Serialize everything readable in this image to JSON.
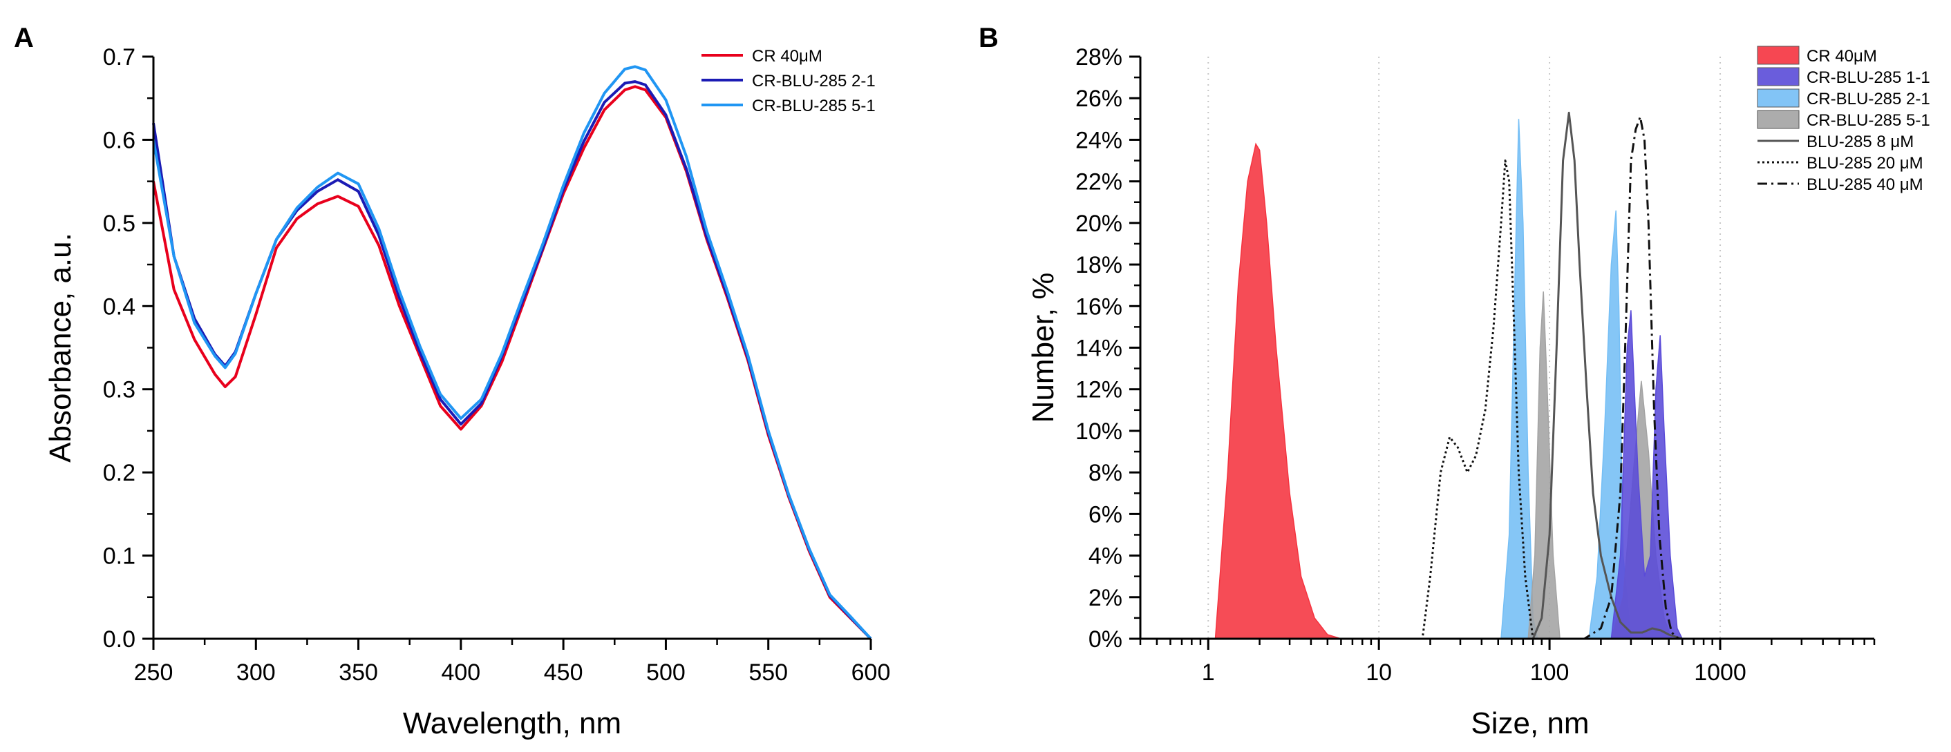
{
  "chart_data": [
    {
      "panel": "A",
      "type": "line",
      "title": "",
      "xlabel": "Wavelength, nm",
      "ylabel": "Absorbance, a.u.",
      "xlim": [
        250,
        600
      ],
      "ylim": [
        0.0,
        0.7
      ],
      "xticks": [
        250,
        300,
        350,
        400,
        450,
        500,
        550,
        600
      ],
      "yticks": [
        0.0,
        0.1,
        0.2,
        0.3,
        0.4,
        0.5,
        0.6,
        0.7
      ],
      "xtick_labels": [
        "250",
        "300",
        "350",
        "400",
        "450",
        "500",
        "550",
        "600"
      ],
      "ytick_labels": [
        "0.0",
        "0.1",
        "0.2",
        "0.3",
        "0.4",
        "0.5",
        "0.6",
        "0.7"
      ],
      "grid": false,
      "legend_position": "top-right",
      "x": [
        250,
        260,
        270,
        280,
        285,
        290,
        300,
        310,
        320,
        330,
        340,
        350,
        360,
        370,
        380,
        390,
        400,
        410,
        420,
        430,
        440,
        450,
        460,
        470,
        480,
        485,
        490,
        500,
        510,
        520,
        530,
        540,
        550,
        560,
        570,
        580,
        590,
        600
      ],
      "series": [
        {
          "name": "CR 40μM",
          "color": "#e8001c",
          "values": [
            0.55,
            0.42,
            0.36,
            0.318,
            0.303,
            0.315,
            0.39,
            0.47,
            0.505,
            0.523,
            0.532,
            0.52,
            0.473,
            0.4,
            0.34,
            0.28,
            0.252,
            0.28,
            0.333,
            0.4,
            0.468,
            0.535,
            0.59,
            0.636,
            0.66,
            0.664,
            0.66,
            0.627,
            0.562,
            0.48,
            0.41,
            0.335,
            0.245,
            0.17,
            0.105,
            0.05,
            0.025,
            0.0
          ]
        },
        {
          "name": "CR-BLU-285 2-1",
          "color": "#1b1bb4",
          "values": [
            0.62,
            0.46,
            0.385,
            0.342,
            0.328,
            0.345,
            0.415,
            0.48,
            0.515,
            0.538,
            0.552,
            0.538,
            0.485,
            0.41,
            0.345,
            0.288,
            0.258,
            0.283,
            0.34,
            0.405,
            0.47,
            0.54,
            0.598,
            0.645,
            0.668,
            0.67,
            0.666,
            0.63,
            0.565,
            0.483,
            0.413,
            0.338,
            0.248,
            0.172,
            0.107,
            0.052,
            0.026,
            0.0
          ]
        },
        {
          "name": "CR-BLU-285 5-1",
          "color": "#2096f3",
          "values": [
            0.6,
            0.46,
            0.38,
            0.34,
            0.326,
            0.343,
            0.415,
            0.48,
            0.518,
            0.543,
            0.56,
            0.547,
            0.493,
            0.418,
            0.352,
            0.294,
            0.265,
            0.288,
            0.343,
            0.41,
            0.475,
            0.545,
            0.608,
            0.656,
            0.685,
            0.688,
            0.684,
            0.648,
            0.58,
            0.49,
            0.418,
            0.341,
            0.25,
            0.173,
            0.108,
            0.053,
            0.027,
            0.0
          ]
        }
      ]
    },
    {
      "panel": "B",
      "type": "area",
      "title": "",
      "xlabel": "Size, nm",
      "ylabel": "Number, %",
      "xscale": "log",
      "xlim": [
        0.4,
        8000
      ],
      "ylim": [
        0,
        28
      ],
      "xticks": [
        1,
        10,
        100,
        1000
      ],
      "xtick_labels": [
        "1",
        "10",
        "100",
        "1000"
      ],
      "yticks": [
        0,
        2,
        4,
        6,
        8,
        10,
        12,
        14,
        16,
        18,
        20,
        22,
        24,
        26,
        28
      ],
      "ytick_labels": [
        "0%",
        "2%",
        "4%",
        "6%",
        "8%",
        "10%",
        "12%",
        "14%",
        "16%",
        "18%",
        "20%",
        "22%",
        "24%",
        "26%",
        "28%"
      ],
      "grid": "vertical dotted at decades",
      "legend_position": "top-right",
      "series": [
        {
          "name": "CR 40μM",
          "style": "filled",
          "color": "#f5333f",
          "x": [
            1.1,
            1.3,
            1.5,
            1.7,
            1.9,
            2.0,
            2.2,
            2.5,
            3.0,
            3.5,
            4.2,
            5.0,
            6.0
          ],
          "y": [
            0,
            8,
            17,
            22,
            23.8,
            23.5,
            20,
            14,
            7,
            3,
            1,
            0.2,
            0
          ]
        },
        {
          "name": "CR-BLU-285 2-1",
          "style": "filled",
          "color": "#74bef5",
          "x": [
            52,
            58,
            63,
            66,
            70,
            75,
            80,
            85,
            170,
            190,
            210,
            230,
            245,
            255,
            270,
            300
          ],
          "y": [
            0,
            5,
            18,
            25,
            20,
            8,
            1,
            0,
            0,
            3,
            10,
            18,
            20.6,
            16,
            4,
            0
          ]
        },
        {
          "name": "CR-BLU-285 5-1",
          "style": "filled",
          "color": "#a3a3a3",
          "x": [
            75,
            82,
            88,
            92,
            97,
            105,
            115,
            230,
            270,
            310,
            345,
            380,
            420,
            470,
            520
          ],
          "y": [
            0,
            4,
            14,
            16.7,
            12,
            4,
            0,
            0,
            2,
            8,
            12.4,
            9,
            4,
            1,
            0
          ]
        },
        {
          "name": "CR-BLU-285 1-1",
          "style": "filled",
          "color": "#5a4bd8",
          "x": [
            230,
            260,
            285,
            300,
            330,
            360,
            390,
            420,
            445,
            470,
            510,
            560,
            600
          ],
          "y": [
            0,
            4,
            14,
            15.8,
            8,
            3,
            4,
            12,
            14.6,
            10,
            4,
            0.5,
            0
          ]
        },
        {
          "name": "BLU-285 8 μM",
          "style": "solid",
          "color": "#555555",
          "x": [
            0.4,
            80,
            90,
            100,
            110,
            120,
            130,
            140,
            150,
            165,
            180,
            200,
            230,
            260,
            300,
            350,
            400,
            450,
            500,
            600,
            8000
          ],
          "y": [
            0,
            0,
            1,
            5,
            14,
            23,
            25.3,
            23,
            18,
            12,
            7,
            4,
            2,
            0.8,
            0.3,
            0.3,
            0.5,
            0.4,
            0.2,
            0,
            0
          ]
        },
        {
          "name": "BLU-285 20 μM",
          "style": "dotted",
          "color": "#111111",
          "x": [
            0.4,
            18,
            20,
            23,
            26,
            29,
            33,
            37,
            42,
            47,
            52,
            55,
            58,
            62,
            66,
            72,
            80,
            8000
          ],
          "y": [
            0,
            0,
            3,
            8,
            9.7,
            9.2,
            8.0,
            8.8,
            11,
            15,
            20,
            23,
            22,
            15,
            8,
            3,
            0,
            0
          ]
        },
        {
          "name": "BLU-285 40 μM",
          "style": "dashdot",
          "color": "#111111",
          "x": [
            0.4,
            160,
            200,
            230,
            260,
            280,
            300,
            320,
            340,
            360,
            380,
            410,
            440,
            480,
            520,
            570,
            8000
          ],
          "y": [
            0,
            0,
            0.5,
            2,
            7,
            15,
            23,
            24.5,
            25.1,
            24,
            20,
            11,
            5,
            1.5,
            0.3,
            0,
            0
          ]
        }
      ]
    }
  ]
}
